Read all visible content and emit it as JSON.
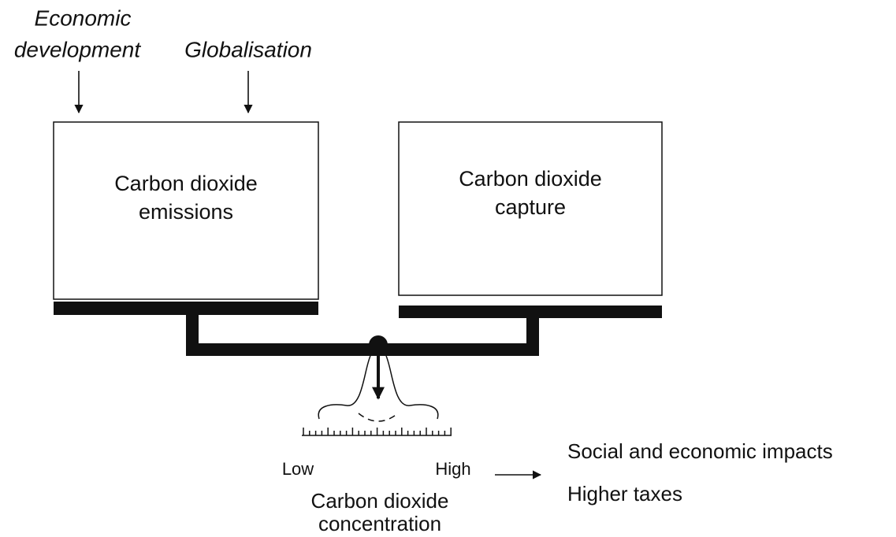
{
  "drivers": [
    {
      "lines": [
        "Economic",
        "development"
      ]
    },
    {
      "lines": [
        "Globalisation"
      ]
    }
  ],
  "left_pan": {
    "lines": [
      "Carbon dioxide",
      "emissions"
    ]
  },
  "right_pan": {
    "lines": [
      "Carbon dioxide",
      "capture"
    ]
  },
  "gauge": {
    "low": "Low",
    "high": "High",
    "label": [
      "Carbon dioxide",
      "concentration"
    ]
  },
  "outcomes": [
    "Social and economic impacts",
    "Higher taxes"
  ]
}
